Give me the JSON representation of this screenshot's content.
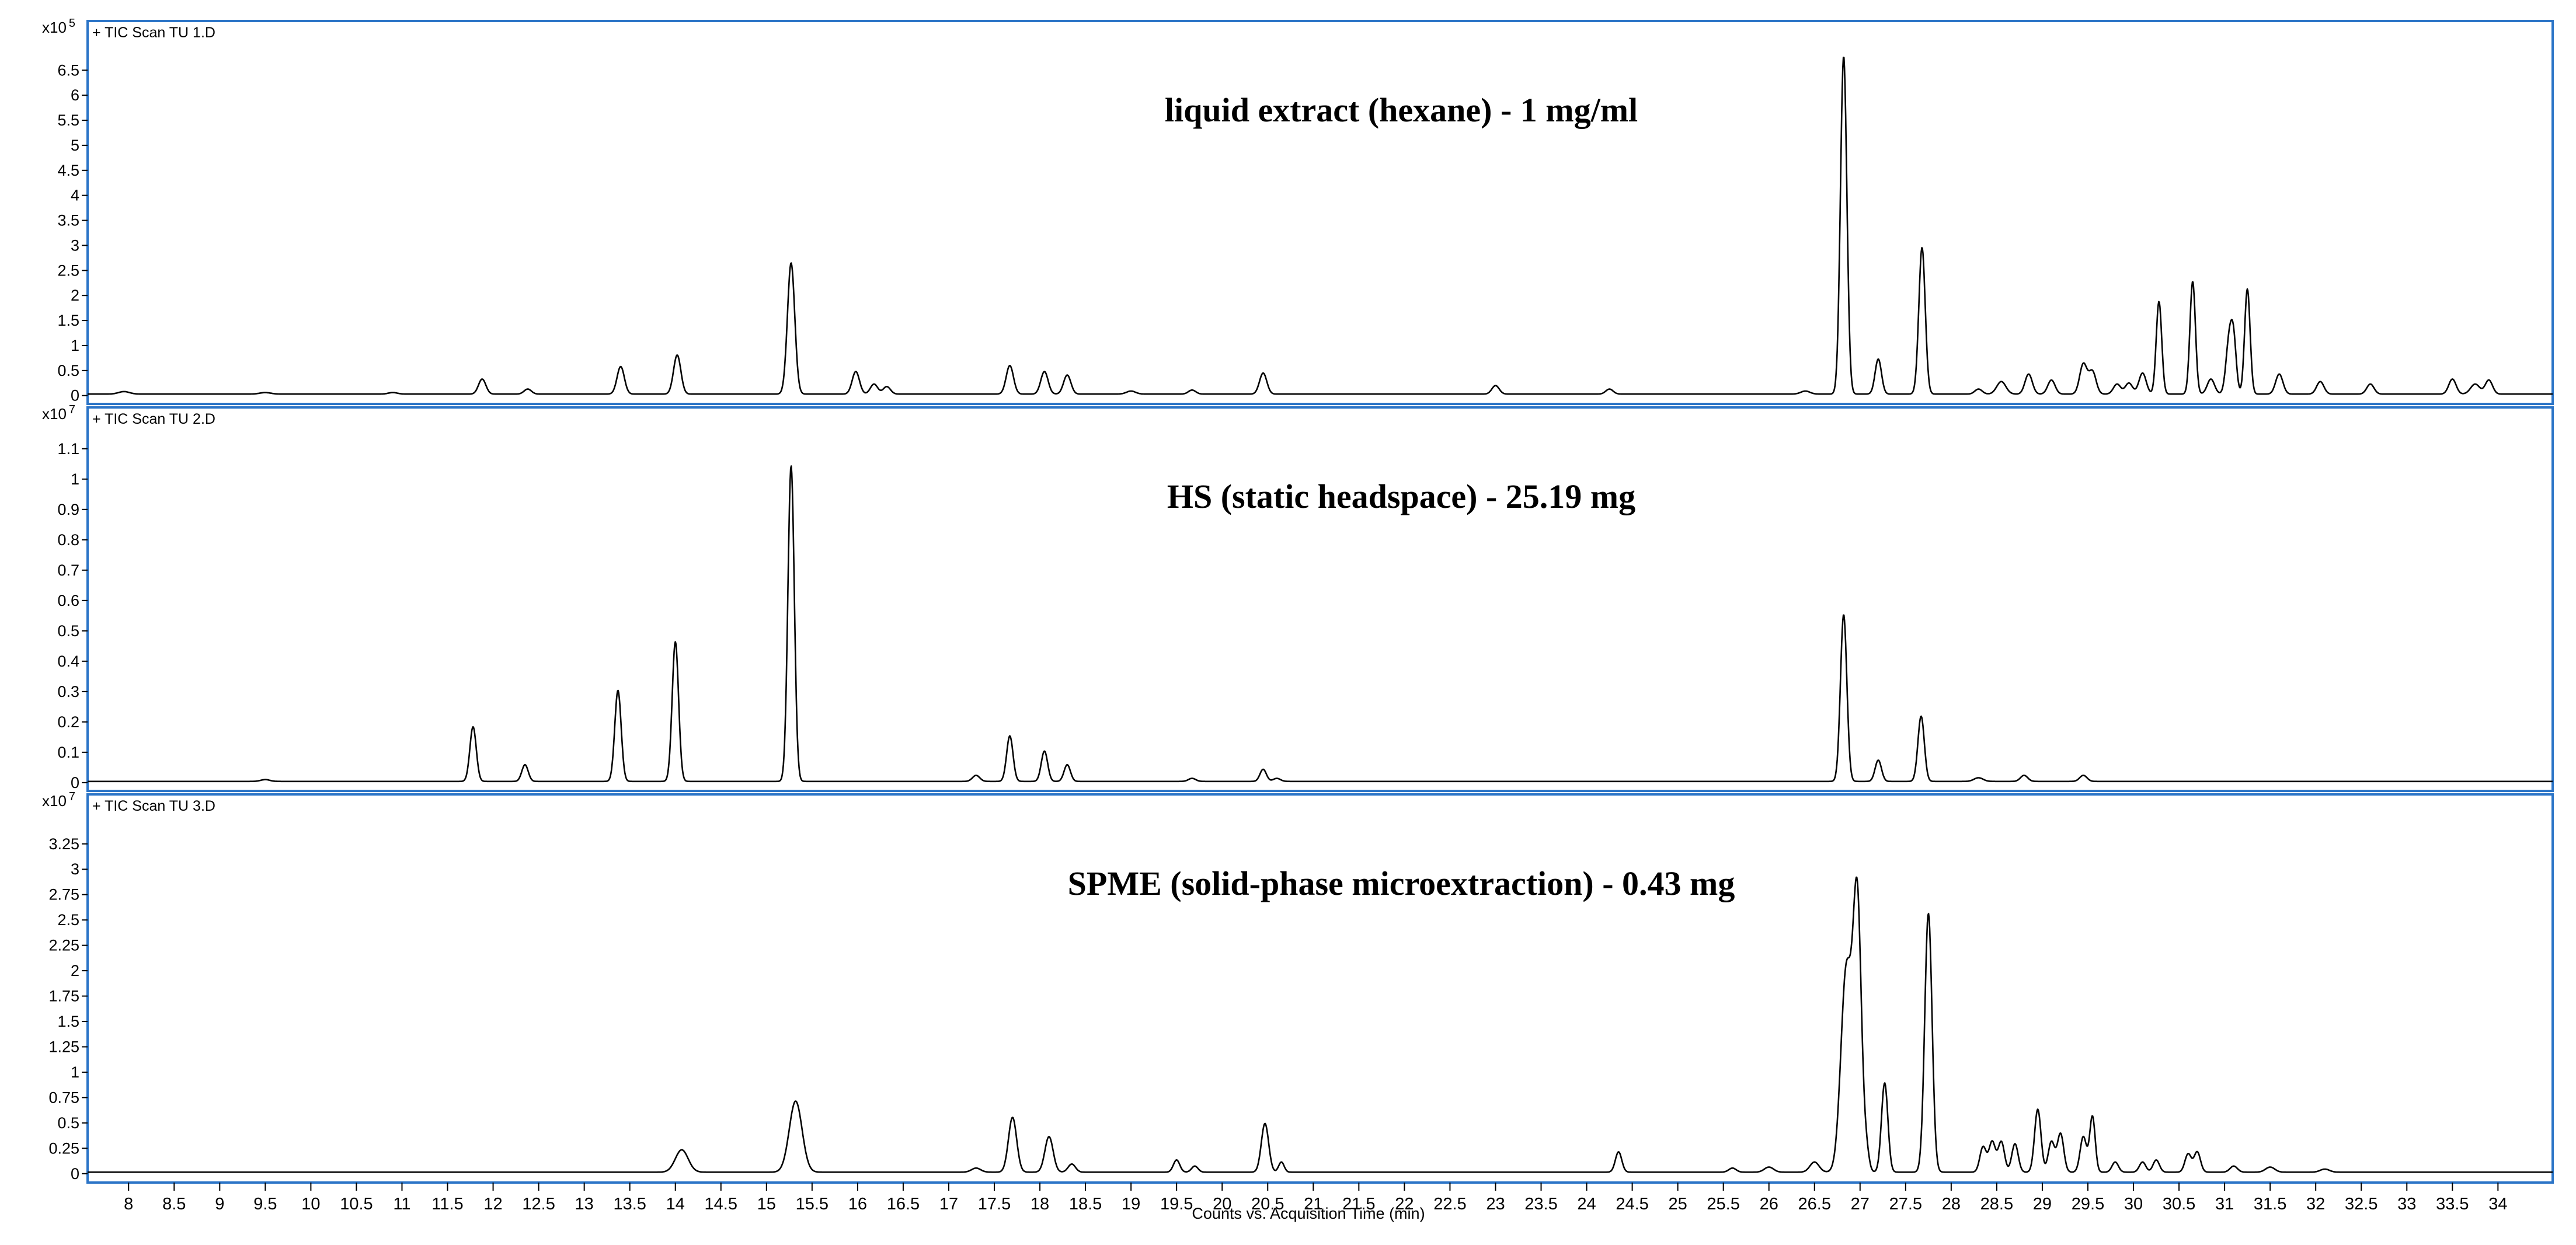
{
  "xlabel": "Counts vs. Acquisition Time (min)",
  "xlim": [
    7.55,
    34.6
  ],
  "x_ticks": [
    8,
    8.5,
    9,
    9.5,
    10,
    10.5,
    11,
    11.5,
    12,
    12.5,
    13,
    13.5,
    14,
    14.5,
    15,
    15.5,
    16,
    16.5,
    17,
    17.5,
    18,
    18.5,
    19,
    19.5,
    20,
    20.5,
    21,
    21.5,
    22,
    22.5,
    23,
    23.5,
    24,
    24.5,
    25,
    25.5,
    26,
    26.5,
    27,
    27.5,
    28,
    28.5,
    29,
    29.5,
    30,
    30.5,
    31,
    31.5,
    32,
    32.5,
    33,
    33.5,
    34
  ],
  "colors": {
    "frame": "#2b74c7",
    "trace": "#000000",
    "background": "#ffffff"
  },
  "chart_data": [
    {
      "type": "line",
      "label": "+ TIC Scan TU 1.D",
      "title": "liquid extract (hexane) - 1 mg/ml",
      "scale_base": "x10",
      "scale_exp": "5",
      "ylim": [
        -0.05,
        6.9
      ],
      "y_ticks": [
        0,
        0.5,
        1,
        1.5,
        2,
        2.5,
        3,
        3.5,
        4,
        4.5,
        5,
        5.5,
        6,
        6.5
      ],
      "baseline": 0.03,
      "peaks": [
        [
          7.95,
          0.05,
          0.06
        ],
        [
          9.5,
          0.03,
          0.06
        ],
        [
          10.9,
          0.03,
          0.05
        ],
        [
          11.88,
          0.3,
          0.04
        ],
        [
          12.38,
          0.1,
          0.04
        ],
        [
          13.4,
          0.55,
          0.04
        ],
        [
          14.02,
          0.78,
          0.04
        ],
        [
          15.27,
          2.62,
          0.04
        ],
        [
          15.98,
          0.45,
          0.04
        ],
        [
          16.18,
          0.2,
          0.04
        ],
        [
          16.32,
          0.15,
          0.04
        ],
        [
          17.67,
          0.57,
          0.04
        ],
        [
          18.05,
          0.45,
          0.04
        ],
        [
          18.3,
          0.38,
          0.04
        ],
        [
          19.0,
          0.06,
          0.05
        ],
        [
          19.67,
          0.08,
          0.04
        ],
        [
          20.45,
          0.42,
          0.04
        ],
        [
          23.0,
          0.17,
          0.04
        ],
        [
          24.25,
          0.1,
          0.04
        ],
        [
          26.4,
          0.06,
          0.05
        ],
        [
          26.82,
          6.75,
          0.035
        ],
        [
          27.2,
          0.7,
          0.035
        ],
        [
          27.68,
          2.93,
          0.035
        ],
        [
          28.3,
          0.1,
          0.04
        ],
        [
          28.55,
          0.25,
          0.05
        ],
        [
          28.85,
          0.4,
          0.04
        ],
        [
          29.1,
          0.28,
          0.04
        ],
        [
          29.45,
          0.6,
          0.04
        ],
        [
          29.55,
          0.45,
          0.04
        ],
        [
          29.82,
          0.2,
          0.04
        ],
        [
          29.95,
          0.22,
          0.04
        ],
        [
          30.1,
          0.42,
          0.04
        ],
        [
          30.28,
          1.85,
          0.03
        ],
        [
          30.65,
          2.25,
          0.03
        ],
        [
          30.85,
          0.3,
          0.04
        ],
        [
          31.05,
          1.05,
          0.035
        ],
        [
          31.1,
          0.95,
          0.03
        ],
        [
          31.25,
          2.1,
          0.03
        ],
        [
          31.6,
          0.4,
          0.04
        ],
        [
          32.05,
          0.25,
          0.04
        ],
        [
          32.6,
          0.2,
          0.04
        ],
        [
          33.5,
          0.3,
          0.04
        ],
        [
          33.75,
          0.2,
          0.05
        ],
        [
          33.9,
          0.28,
          0.04
        ]
      ]
    },
    {
      "type": "line",
      "label": "+ TIC Scan TU 2.D",
      "title": "HS (static headspace) - 25.19 mg",
      "scale_base": "x10",
      "scale_exp": "7",
      "ylim": [
        -0.008,
        1.14
      ],
      "y_ticks": [
        0,
        0.1,
        0.2,
        0.3,
        0.4,
        0.5,
        0.6,
        0.7,
        0.8,
        0.9,
        1,
        1.1
      ],
      "baseline": 0.004,
      "peaks": [
        [
          9.5,
          0.006,
          0.05
        ],
        [
          11.78,
          0.18,
          0.035
        ],
        [
          12.35,
          0.055,
          0.035
        ],
        [
          13.37,
          0.3,
          0.035
        ],
        [
          14.0,
          0.46,
          0.035
        ],
        [
          15.27,
          1.04,
          0.035
        ],
        [
          17.3,
          0.02,
          0.04
        ],
        [
          17.67,
          0.15,
          0.035
        ],
        [
          18.05,
          0.1,
          0.035
        ],
        [
          18.3,
          0.055,
          0.035
        ],
        [
          19.67,
          0.01,
          0.04
        ],
        [
          20.45,
          0.04,
          0.035
        ],
        [
          20.6,
          0.01,
          0.04
        ],
        [
          26.82,
          0.55,
          0.035
        ],
        [
          27.2,
          0.07,
          0.035
        ],
        [
          27.67,
          0.215,
          0.035
        ],
        [
          28.3,
          0.012,
          0.05
        ],
        [
          28.8,
          0.02,
          0.04
        ],
        [
          29.45,
          0.02,
          0.04
        ]
      ]
    },
    {
      "type": "line",
      "label": "+ TIC Scan TU 3.D",
      "title": "SPME (solid-phase microextraction) - 0.43 mg",
      "scale_base": "x10",
      "scale_exp": "7",
      "ylim": [
        -0.03,
        3.45
      ],
      "y_ticks": [
        0,
        0.25,
        0.5,
        0.75,
        1,
        1.25,
        1.5,
        1.75,
        2,
        2.25,
        2.5,
        2.75,
        3,
        3.25
      ],
      "baseline": 0.015,
      "peaks": [
        [
          14.07,
          0.22,
          0.07
        ],
        [
          15.32,
          0.7,
          0.07
        ],
        [
          17.3,
          0.04,
          0.05
        ],
        [
          17.7,
          0.54,
          0.045
        ],
        [
          18.1,
          0.35,
          0.045
        ],
        [
          18.35,
          0.08,
          0.04
        ],
        [
          19.5,
          0.12,
          0.035
        ],
        [
          19.7,
          0.06,
          0.035
        ],
        [
          20.47,
          0.48,
          0.04
        ],
        [
          20.65,
          0.1,
          0.03
        ],
        [
          24.35,
          0.2,
          0.035
        ],
        [
          25.6,
          0.04,
          0.04
        ],
        [
          26.0,
          0.05,
          0.05
        ],
        [
          26.5,
          0.1,
          0.05
        ],
        [
          26.85,
          2.0,
          0.06
        ],
        [
          26.97,
          2.6,
          0.045
        ],
        [
          27.07,
          0.18,
          0.03
        ],
        [
          27.27,
          0.88,
          0.035
        ],
        [
          27.75,
          2.55,
          0.04
        ],
        [
          28.35,
          0.25,
          0.035
        ],
        [
          28.45,
          0.3,
          0.035
        ],
        [
          28.55,
          0.3,
          0.035
        ],
        [
          28.7,
          0.28,
          0.035
        ],
        [
          28.95,
          0.62,
          0.035
        ],
        [
          29.1,
          0.3,
          0.035
        ],
        [
          29.2,
          0.38,
          0.035
        ],
        [
          29.45,
          0.35,
          0.035
        ],
        [
          29.55,
          0.55,
          0.03
        ],
        [
          29.8,
          0.1,
          0.035
        ],
        [
          30.1,
          0.1,
          0.035
        ],
        [
          30.25,
          0.12,
          0.035
        ],
        [
          30.6,
          0.18,
          0.035
        ],
        [
          30.7,
          0.2,
          0.035
        ],
        [
          31.1,
          0.06,
          0.04
        ],
        [
          31.5,
          0.05,
          0.05
        ],
        [
          32.1,
          0.03,
          0.05
        ]
      ]
    }
  ]
}
